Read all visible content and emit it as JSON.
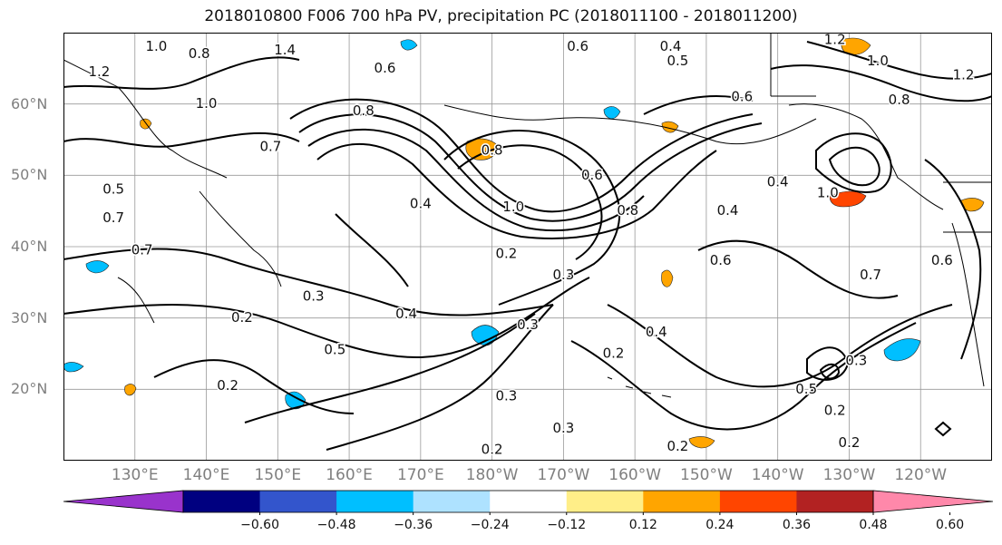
{
  "title": "2018010800 F006 700 hPa PV, precipitation PC (2018011100 - 2018011200)",
  "map": {
    "lat_labels": [
      {
        "text": "60°N",
        "lat": 60
      },
      {
        "text": "50°N",
        "lat": 50
      },
      {
        "text": "40°N",
        "lat": 40
      },
      {
        "text": "30°N",
        "lat": 30
      },
      {
        "text": "20°N",
        "lat": 20
      }
    ],
    "lon_labels": [
      {
        "text": "130°E",
        "lon": 130
      },
      {
        "text": "140°E",
        "lon": 140
      },
      {
        "text": "150°E",
        "lon": 150
      },
      {
        "text": "160°E",
        "lon": 160
      },
      {
        "text": "170°E",
        "lon": 170
      },
      {
        "text": "180°W",
        "lon": 180
      },
      {
        "text": "170°W",
        "lon": 190
      },
      {
        "text": "160°W",
        "lon": 200
      },
      {
        "text": "150°W",
        "lon": 210
      },
      {
        "text": "140°W",
        "lon": 220
      },
      {
        "text": "130°W",
        "lon": 230
      },
      {
        "text": "120°W",
        "lon": 240
      }
    ],
    "extent": {
      "lon_min": 120,
      "lon_max": 250,
      "lat_min": 10,
      "lat_max": 70
    },
    "contour_labels": [
      {
        "text": "1.0",
        "lon": 133,
        "lat": 68
      },
      {
        "text": "0.8",
        "lon": 139,
        "lat": 67
      },
      {
        "text": "1.4",
        "lon": 151,
        "lat": 67.5
      },
      {
        "text": "1.2",
        "lon": 125,
        "lat": 64.5
      },
      {
        "text": "1.0",
        "lon": 140,
        "lat": 60
      },
      {
        "text": "0.7",
        "lon": 149,
        "lat": 54
      },
      {
        "text": "0.8",
        "lon": 162,
        "lat": 59
      },
      {
        "text": "0.6",
        "lon": 165,
        "lat": 65
      },
      {
        "text": "0.8",
        "lon": 180,
        "lat": 53.5
      },
      {
        "text": "0.6",
        "lon": 192,
        "lat": 68
      },
      {
        "text": "0.4",
        "lon": 205,
        "lat": 68
      },
      {
        "text": "0.5",
        "lon": 206,
        "lat": 66
      },
      {
        "text": "0.6",
        "lon": 215,
        "lat": 61
      },
      {
        "text": "1.2",
        "lon": 228,
        "lat": 69
      },
      {
        "text": "1.0",
        "lon": 234,
        "lat": 66
      },
      {
        "text": "0.8",
        "lon": 237,
        "lat": 60.5
      },
      {
        "text": "1.2",
        "lon": 246,
        "lat": 64
      },
      {
        "text": "0.4",
        "lon": 170,
        "lat": 46
      },
      {
        "text": "1.0",
        "lon": 183,
        "lat": 45.5
      },
      {
        "text": "0.6",
        "lon": 194,
        "lat": 50
      },
      {
        "text": "0.8",
        "lon": 199,
        "lat": 45
      },
      {
        "text": "0.4",
        "lon": 213,
        "lat": 45
      },
      {
        "text": "0.6",
        "lon": 212,
        "lat": 38
      },
      {
        "text": "0.4",
        "lon": 220,
        "lat": 49
      },
      {
        "text": "1.0",
        "lon": 227,
        "lat": 47.5
      },
      {
        "text": "0.6",
        "lon": 243,
        "lat": 38
      },
      {
        "text": "0.7",
        "lon": 233,
        "lat": 36
      },
      {
        "text": "0.5",
        "lon": 127,
        "lat": 48
      },
      {
        "text": "0.7",
        "lon": 127,
        "lat": 44
      },
      {
        "text": "0.7",
        "lon": 131,
        "lat": 39.5
      },
      {
        "text": "0.3",
        "lon": 155,
        "lat": 33
      },
      {
        "text": "0.2",
        "lon": 182,
        "lat": 39
      },
      {
        "text": "0.3",
        "lon": 190,
        "lat": 36
      },
      {
        "text": "0.4",
        "lon": 168,
        "lat": 30.5
      },
      {
        "text": "0.3",
        "lon": 185,
        "lat": 29
      },
      {
        "text": "0.2",
        "lon": 145,
        "lat": 30
      },
      {
        "text": "0.5",
        "lon": 158,
        "lat": 25.5
      },
      {
        "text": "0.2",
        "lon": 143,
        "lat": 20.5
      },
      {
        "text": "0.4",
        "lon": 203,
        "lat": 28
      },
      {
        "text": "0.2",
        "lon": 197,
        "lat": 25
      },
      {
        "text": "0.3",
        "lon": 182,
        "lat": 19
      },
      {
        "text": "0.3",
        "lon": 190,
        "lat": 14.5
      },
      {
        "text": "0.2",
        "lon": 180,
        "lat": 11.5
      },
      {
        "text": "0.5",
        "lon": 224,
        "lat": 20
      },
      {
        "text": "0.2",
        "lon": 228,
        "lat": 17
      },
      {
        "text": "0.2",
        "lon": 206,
        "lat": 12
      },
      {
        "text": "0.2",
        "lon": 230,
        "lat": 12.5
      },
      {
        "text": "0.3",
        "lon": 231,
        "lat": 24
      }
    ]
  },
  "colorbar": {
    "colors": [
      "#9933cc",
      "#000080",
      "#3355cc",
      "#00bfff",
      "#aee2ff",
      "#ffffff",
      "#ffee88",
      "#ffa500",
      "#ff4500",
      "#b22222",
      "#ff88aa"
    ],
    "tick_labels": [
      "−0.60",
      "−0.48",
      "−0.36",
      "−0.24",
      "−0.12",
      "0.12",
      "0.24",
      "0.36",
      "0.48",
      "0.60"
    ]
  }
}
